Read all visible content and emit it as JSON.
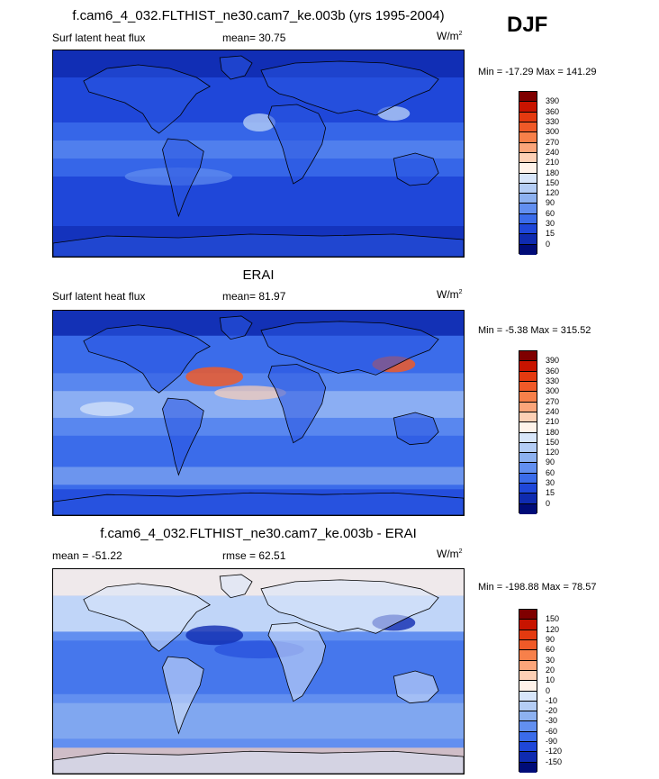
{
  "season": "DJF",
  "panels": [
    {
      "title": "f.cam6_4_032.FLTHIST_ne30.cam7_ke.003b (yrs 1995-2004)",
      "left_label": "Surf latent heat flux",
      "mid_label": "mean=  30.75",
      "units": "W/m",
      "units_sup": "2",
      "minmax": "Min = -17.29 Max = 141.29",
      "colorbar": {
        "levels": [
          "390",
          "360",
          "330",
          "300",
          "270",
          "240",
          "210",
          "180",
          "150",
          "120",
          "90",
          "60",
          "30",
          "15",
          "0"
        ],
        "colors": [
          "#7f0000",
          "#c81400",
          "#e43a10",
          "#f05a28",
          "#f7804a",
          "#fba57a",
          "#fdd0b5",
          "#fff3ea",
          "#d8e6fa",
          "#b4cdf5",
          "#8db1f0",
          "#628ff0",
          "#3b6cea",
          "#1f47d9",
          "#0f2bb0",
          "#000c78"
        ]
      }
    },
    {
      "title": "ERAI",
      "left_label": "Surf latent heat flux",
      "mid_label": "mean=  81.97",
      "units": "W/m",
      "units_sup": "2",
      "minmax": "Min =  -5.38 Max = 315.52",
      "colorbar": {
        "levels": [
          "390",
          "360",
          "330",
          "300",
          "270",
          "240",
          "210",
          "180",
          "150",
          "120",
          "90",
          "60",
          "30",
          "15",
          "0"
        ],
        "colors": [
          "#7f0000",
          "#c81400",
          "#e43a10",
          "#f05a28",
          "#f7804a",
          "#fba57a",
          "#fdd0b5",
          "#fff3ea",
          "#d8e6fa",
          "#b4cdf5",
          "#8db1f0",
          "#628ff0",
          "#3b6cea",
          "#1f47d9",
          "#0f2bb0",
          "#000c78"
        ]
      }
    },
    {
      "title": "f.cam6_4_032.FLTHIST_ne30.cam7_ke.003b - ERAI",
      "left_label": "mean = -51.22",
      "mid_label": "rmse =  62.51",
      "units": "W/m",
      "units_sup": "2",
      "minmax": "Min = -198.88 Max =  78.57",
      "colorbar": {
        "levels": [
          "150",
          "120",
          "90",
          "60",
          "30",
          "20",
          "10",
          "0",
          "-10",
          "-20",
          "-30",
          "-60",
          "-90",
          "-120",
          "-150"
        ],
        "colors": [
          "#7f0000",
          "#c81400",
          "#e43a10",
          "#f05a28",
          "#f7804a",
          "#fba57a",
          "#fdd0b5",
          "#fff3ea",
          "#d8e6fa",
          "#b4cdf5",
          "#8db1f0",
          "#628ff0",
          "#3b6cea",
          "#1f47d9",
          "#0f2bb0",
          "#000c78"
        ]
      }
    }
  ],
  "chart_data": [
    {
      "type": "heatmap",
      "title": "f.cam6_4_032.FLTHIST_ne30.cam7_ke.003b (yrs 1995-2004)",
      "variable": "Surf latent heat flux",
      "mean": 30.75,
      "min": -17.29,
      "max": 141.29,
      "units": "W/m2"
    },
    {
      "type": "heatmap",
      "title": "ERAI",
      "variable": "Surf latent heat flux",
      "mean": 81.97,
      "min": -5.38,
      "max": 315.52,
      "units": "W/m2"
    },
    {
      "type": "heatmap",
      "title": "f.cam6_4_032.FLTHIST_ne30.cam7_ke.003b - ERAI",
      "mean": -51.22,
      "rmse": 62.51,
      "min": -198.88,
      "max": 78.57,
      "units": "W/m2"
    }
  ]
}
